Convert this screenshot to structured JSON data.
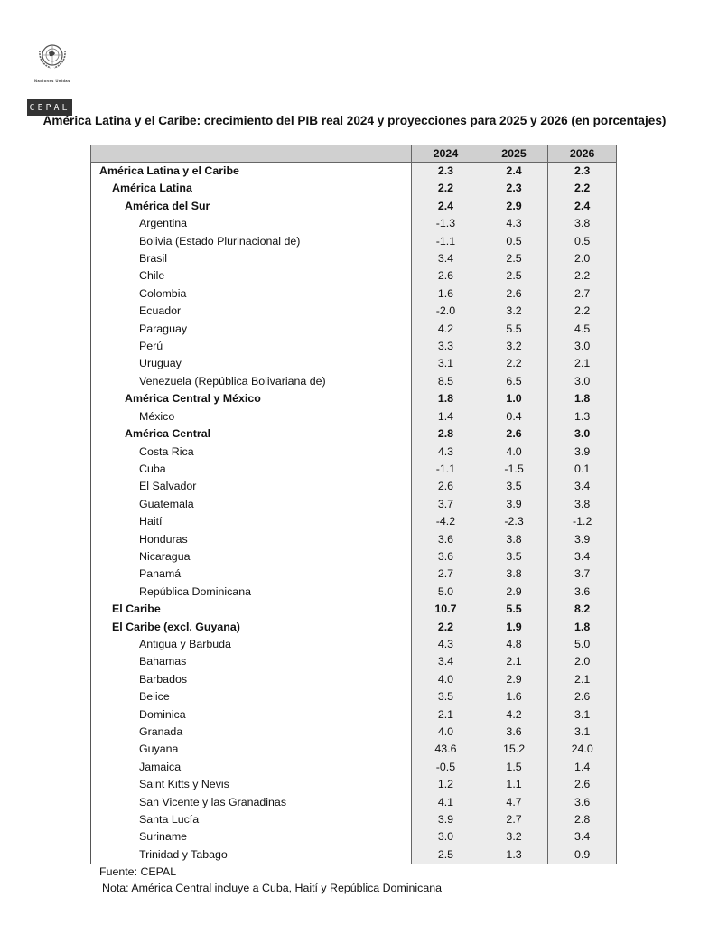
{
  "logo": {
    "org": "Naciones Unidas",
    "name": "CEPAL"
  },
  "title": "América Latina y el Caribe: crecimiento del PIB real 2024 y proyecciones para 2025 y 2026 (en porcentajes)",
  "table": {
    "columns": [
      "",
      "2024",
      "2025",
      "2026"
    ],
    "rows": [
      {
        "label": "América Latina y el Caribe",
        "level": 0,
        "bold": true,
        "values": [
          "2.3",
          "2.4",
          "2.3"
        ]
      },
      {
        "label": "América Latina",
        "level": 1,
        "bold": true,
        "values": [
          "2.2",
          "2.3",
          "2.2"
        ]
      },
      {
        "label": "América del Sur",
        "level": 2,
        "bold": true,
        "values": [
          "2.4",
          "2.9",
          "2.4"
        ]
      },
      {
        "label": "Argentina",
        "level": 3,
        "bold": false,
        "values": [
          "-1.3",
          "4.3",
          "3.8"
        ]
      },
      {
        "label": "Bolivia (Estado Plurinacional de)",
        "level": 3,
        "bold": false,
        "values": [
          "-1.1",
          "0.5",
          "0.5"
        ]
      },
      {
        "label": "Brasil",
        "level": 3,
        "bold": false,
        "values": [
          "3.4",
          "2.5",
          "2.0"
        ]
      },
      {
        "label": "Chile",
        "level": 3,
        "bold": false,
        "values": [
          "2.6",
          "2.5",
          "2.2"
        ]
      },
      {
        "label": "Colombia",
        "level": 3,
        "bold": false,
        "values": [
          "1.6",
          "2.6",
          "2.7"
        ]
      },
      {
        "label": "Ecuador",
        "level": 3,
        "bold": false,
        "values": [
          "-2.0",
          "3.2",
          "2.2"
        ]
      },
      {
        "label": "Paraguay",
        "level": 3,
        "bold": false,
        "values": [
          "4.2",
          "5.5",
          "4.5"
        ]
      },
      {
        "label": "Perú",
        "level": 3,
        "bold": false,
        "values": [
          "3.3",
          "3.2",
          "3.0"
        ]
      },
      {
        "label": "Uruguay",
        "level": 3,
        "bold": false,
        "values": [
          "3.1",
          "2.2",
          "2.1"
        ]
      },
      {
        "label": "Venezuela (República Bolivariana de)",
        "level": 3,
        "bold": false,
        "values": [
          "8.5",
          "6.5",
          "3.0"
        ]
      },
      {
        "label": "América Central y México",
        "level": 2,
        "bold": true,
        "values": [
          "1.8",
          "1.0",
          "1.8"
        ]
      },
      {
        "label": "México",
        "level": 3,
        "bold": false,
        "values": [
          "1.4",
          "0.4",
          "1.3"
        ]
      },
      {
        "label": "América Central",
        "level": 2,
        "bold": true,
        "values": [
          "2.8",
          "2.6",
          "3.0"
        ]
      },
      {
        "label": "Costa Rica",
        "level": 3,
        "bold": false,
        "values": [
          "4.3",
          "4.0",
          "3.9"
        ]
      },
      {
        "label": "Cuba",
        "level": 3,
        "bold": false,
        "values": [
          "-1.1",
          "-1.5",
          "0.1"
        ]
      },
      {
        "label": "El Salvador",
        "level": 3,
        "bold": false,
        "values": [
          "2.6",
          "3.5",
          "3.4"
        ]
      },
      {
        "label": "Guatemala",
        "level": 3,
        "bold": false,
        "values": [
          "3.7",
          "3.9",
          "3.8"
        ]
      },
      {
        "label": "Haití",
        "level": 3,
        "bold": false,
        "values": [
          "-4.2",
          "-2.3",
          "-1.2"
        ]
      },
      {
        "label": "Honduras",
        "level": 3,
        "bold": false,
        "values": [
          "3.6",
          "3.8",
          "3.9"
        ]
      },
      {
        "label": "Nicaragua",
        "level": 3,
        "bold": false,
        "values": [
          "3.6",
          "3.5",
          "3.4"
        ]
      },
      {
        "label": "Panamá",
        "level": 3,
        "bold": false,
        "values": [
          "2.7",
          "3.8",
          "3.7"
        ]
      },
      {
        "label": "República Dominicana",
        "level": 3,
        "bold": false,
        "values": [
          "5.0",
          "2.9",
          "3.6"
        ]
      },
      {
        "label": "El Caribe",
        "level": 1,
        "bold": true,
        "values": [
          "10.7",
          "5.5",
          "8.2"
        ]
      },
      {
        "label": "El Caribe (excl. Guyana)",
        "level": 1,
        "bold": true,
        "values": [
          "2.2",
          "1.9",
          "1.8"
        ]
      },
      {
        "label": "Antigua y Barbuda",
        "level": 3,
        "bold": false,
        "values": [
          "4.3",
          "4.8",
          "5.0"
        ]
      },
      {
        "label": "Bahamas",
        "level": 3,
        "bold": false,
        "values": [
          "3.4",
          "2.1",
          "2.0"
        ]
      },
      {
        "label": "Barbados",
        "level": 3,
        "bold": false,
        "values": [
          "4.0",
          "2.9",
          "2.1"
        ]
      },
      {
        "label": "Belice",
        "level": 3,
        "bold": false,
        "values": [
          "3.5",
          "1.6",
          "2.6"
        ]
      },
      {
        "label": "Dominica",
        "level": 3,
        "bold": false,
        "values": [
          "2.1",
          "4.2",
          "3.1"
        ]
      },
      {
        "label": "Granada",
        "level": 3,
        "bold": false,
        "values": [
          "4.0",
          "3.6",
          "3.1"
        ]
      },
      {
        "label": "Guyana",
        "level": 3,
        "bold": false,
        "values": [
          "43.6",
          "15.2",
          "24.0"
        ]
      },
      {
        "label": "Jamaica",
        "level": 3,
        "bold": false,
        "values": [
          "-0.5",
          "1.5",
          "1.4"
        ]
      },
      {
        "label": "Saint Kitts y Nevis",
        "level": 3,
        "bold": false,
        "values": [
          "1.2",
          "1.1",
          "2.6"
        ]
      },
      {
        "label": "San Vicente y las Granadinas",
        "level": 3,
        "bold": false,
        "values": [
          "4.1",
          "4.7",
          "3.6"
        ]
      },
      {
        "label": "Santa Lucía",
        "level": 3,
        "bold": false,
        "values": [
          "3.9",
          "2.7",
          "2.8"
        ]
      },
      {
        "label": "Suriname",
        "level": 3,
        "bold": false,
        "values": [
          "3.0",
          "3.2",
          "3.4"
        ]
      },
      {
        "label": "Trinidad y Tabago",
        "level": 3,
        "bold": false,
        "values": [
          "2.5",
          "1.3",
          "0.9"
        ]
      }
    ]
  },
  "source": "Fuente: CEPAL",
  "note": "Nota: América Central incluye a Cuba, Haití y República Dominicana"
}
